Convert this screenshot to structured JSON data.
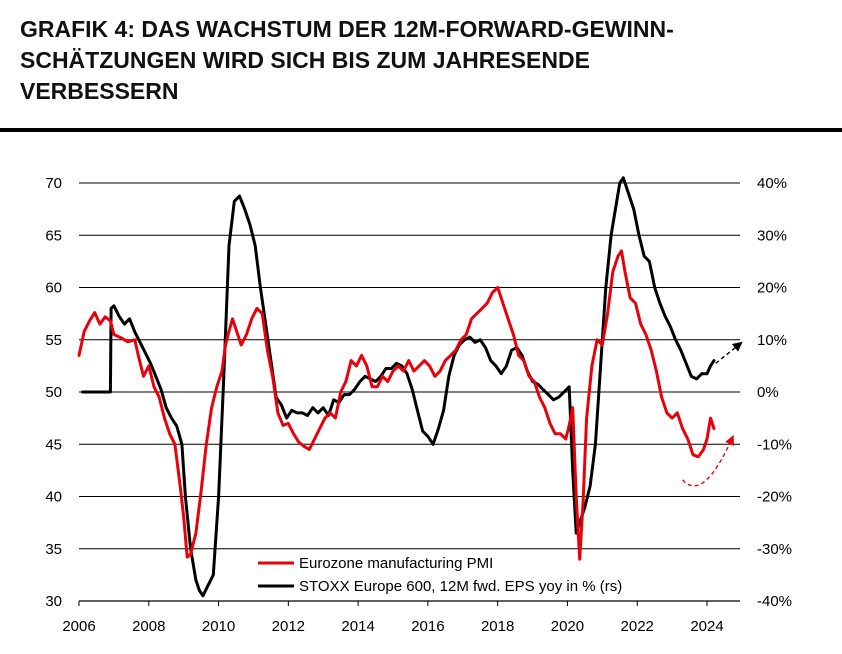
{
  "title_lines": [
    "GRAFIK 4: DAS WACHSTUM DER 12M-FORWARD-GEWINN-",
    "SCHÄTZUNGEN WIRD SICH BIS ZUM JAHRESENDE",
    "VERBESSERN"
  ],
  "chart_data": {
    "type": "line",
    "x_range": [
      2006,
      2025.3
    ],
    "x_ticks": [
      2006,
      2008,
      2010,
      2012,
      2014,
      2016,
      2018,
      2020,
      2022,
      2024
    ],
    "x_tick_labels": [
      "2006",
      "2008",
      "2010",
      "2012",
      "2014",
      "2016",
      "2018",
      "2020",
      "2022",
      "2024"
    ],
    "y_left": {
      "range": [
        30,
        70
      ],
      "ticks": [
        30,
        35,
        40,
        45,
        50,
        55,
        60,
        65,
        70
      ],
      "tick_labels": [
        "30",
        "35",
        "40",
        "45",
        "50",
        "55",
        "60",
        "65",
        "70"
      ]
    },
    "y_right": {
      "range": [
        -40,
        40
      ],
      "ticks": [
        -40,
        -30,
        -20,
        -10,
        0,
        10,
        20,
        30,
        40
      ],
      "tick_labels": [
        "-40%",
        "-30%",
        "-20%",
        "-10%",
        "0%",
        "10%",
        "20%",
        "30%",
        "40%"
      ]
    },
    "grid": "horizontal",
    "legend_position": "bottom-center",
    "series": [
      {
        "name": "Eurozone manufacturing PMI",
        "axis": "left",
        "color": "#e8000b",
        "x": [
          2006.0,
          2006.15,
          2006.3,
          2006.45,
          2006.6,
          2006.75,
          2006.9,
          2007.0,
          2007.2,
          2007.4,
          2007.6,
          2007.7,
          2007.85,
          2008.0,
          2008.15,
          2008.3,
          2008.45,
          2008.6,
          2008.75,
          2008.9,
          2009.0,
          2009.1,
          2009.2,
          2009.35,
          2009.5,
          2009.65,
          2009.8,
          2009.95,
          2010.1,
          2010.2,
          2010.3,
          2010.4,
          2010.5,
          2010.65,
          2010.8,
          2010.95,
          2011.1,
          2011.25,
          2011.4,
          2011.55,
          2011.7,
          2011.85,
          2012.0,
          2012.15,
          2012.3,
          2012.45,
          2012.6,
          2012.75,
          2012.9,
          2013.05,
          2013.2,
          2013.35,
          2013.5,
          2013.65,
          2013.8,
          2013.95,
          2014.1,
          2014.25,
          2014.4,
          2014.55,
          2014.7,
          2014.85,
          2015.0,
          2015.15,
          2015.3,
          2015.45,
          2015.6,
          2015.75,
          2015.9,
          2016.05,
          2016.2,
          2016.35,
          2016.5,
          2016.65,
          2016.8,
          2016.95,
          2017.1,
          2017.25,
          2017.4,
          2017.55,
          2017.7,
          2017.85,
          2018.0,
          2018.15,
          2018.3,
          2018.45,
          2018.6,
          2018.75,
          2018.9,
          2019.05,
          2019.2,
          2019.35,
          2019.5,
          2019.65,
          2019.8,
          2019.95,
          2020.05,
          2020.15,
          2020.25,
          2020.35,
          2020.45,
          2020.55,
          2020.7,
          2020.85,
          2021.0,
          2021.15,
          2021.3,
          2021.45,
          2021.55,
          2021.65,
          2021.8,
          2021.95,
          2022.1,
          2022.25,
          2022.4,
          2022.55,
          2022.7,
          2022.85,
          2023.0,
          2023.15,
          2023.3,
          2023.45,
          2023.6,
          2023.75,
          2023.9,
          2024.0,
          2024.1,
          2024.2
        ],
        "values": [
          53.5,
          55.8,
          56.8,
          57.6,
          56.5,
          57.2,
          56.8,
          55.5,
          55.2,
          54.8,
          55.0,
          53.5,
          51.5,
          52.5,
          50.5,
          49.5,
          47.5,
          46.0,
          45.0,
          41.0,
          38.0,
          34.2,
          34.5,
          36.5,
          40.5,
          45.0,
          48.5,
          50.5,
          52.0,
          54.5,
          55.8,
          57.0,
          56.0,
          54.5,
          55.5,
          57.0,
          58.0,
          57.5,
          54.0,
          51.5,
          48.0,
          46.8,
          47.0,
          46.0,
          45.2,
          44.8,
          44.5,
          45.5,
          46.5,
          47.5,
          48.0,
          47.5,
          50.0,
          51.0,
          53.0,
          52.5,
          53.5,
          52.5,
          50.5,
          50.5,
          51.5,
          51.0,
          52.0,
          52.5,
          52.0,
          53.0,
          52.0,
          52.5,
          53.0,
          52.5,
          51.5,
          52.0,
          53.0,
          53.5,
          54.0,
          55.0,
          55.5,
          57.0,
          57.5,
          58.0,
          58.5,
          59.5,
          60.0,
          58.5,
          57.0,
          55.5,
          53.5,
          53.0,
          51.5,
          51.0,
          49.5,
          48.5,
          47.0,
          46.0,
          46.0,
          45.5,
          46.8,
          48.5,
          40.0,
          34.0,
          39.5,
          47.5,
          52.5,
          55.0,
          54.5,
          57.5,
          61.5,
          63.0,
          63.5,
          61.5,
          59.0,
          58.5,
          56.5,
          55.5,
          54.0,
          52.0,
          49.5,
          48.0,
          47.5,
          48.0,
          46.5,
          45.5,
          44.0,
          43.8,
          44.5,
          45.5,
          47.5,
          46.5
        ]
      },
      {
        "name": "STOXX Europe 600, 12M fwd. EPS yoy in % (rs)",
        "axis": "right",
        "color": "#000000",
        "x": [
          2006.1,
          2006.5,
          2006.9,
          2006.92,
          2007.0,
          2007.15,
          2007.3,
          2007.45,
          2007.6,
          2007.75,
          2007.9,
          2008.05,
          2008.2,
          2008.35,
          2008.5,
          2008.65,
          2008.8,
          2008.95,
          2009.05,
          2009.2,
          2009.35,
          2009.45,
          2009.55,
          2009.7,
          2009.85,
          2010.0,
          2010.15,
          2010.3,
          2010.45,
          2010.6,
          2010.75,
          2010.9,
          2011.05,
          2011.2,
          2011.35,
          2011.5,
          2011.65,
          2011.8,
          2011.95,
          2012.1,
          2012.25,
          2012.4,
          2012.55,
          2012.7,
          2012.85,
          2013.0,
          2013.15,
          2013.3,
          2013.45,
          2013.6,
          2013.75,
          2013.9,
          2014.05,
          2014.2,
          2014.35,
          2014.5,
          2014.65,
          2014.8,
          2014.95,
          2015.1,
          2015.25,
          2015.4,
          2015.55,
          2015.7,
          2015.85,
          2016.0,
          2016.15,
          2016.3,
          2016.45,
          2016.6,
          2016.75,
          2016.9,
          2017.05,
          2017.2,
          2017.35,
          2017.5,
          2017.65,
          2017.8,
          2017.95,
          2018.1,
          2018.25,
          2018.4,
          2018.55,
          2018.7,
          2018.85,
          2019.0,
          2019.15,
          2019.3,
          2019.45,
          2019.6,
          2019.75,
          2019.9,
          2020.05,
          2020.15,
          2020.25,
          2020.35,
          2020.5,
          2020.65,
          2020.8,
          2020.95,
          2021.1,
          2021.25,
          2021.4,
          2021.5,
          2021.6,
          2021.75,
          2021.9,
          2022.05,
          2022.2,
          2022.35,
          2022.5,
          2022.65,
          2022.8,
          2022.95,
          2023.1,
          2023.25,
          2023.4,
          2023.55,
          2023.7,
          2023.85,
          2024.0,
          2024.1,
          2024.2
        ],
        "values": [
          0.0,
          0.0,
          0.0,
          16.0,
          16.5,
          14.5,
          13.0,
          14.0,
          11.5,
          9.5,
          7.5,
          5.5,
          3.0,
          0.5,
          -3.0,
          -5.0,
          -6.5,
          -10.0,
          -20.0,
          -30.0,
          -36.0,
          -38.0,
          -39.0,
          -37.0,
          -35.0,
          -20.0,
          3.0,
          28.0,
          36.5,
          37.5,
          35.0,
          32.0,
          28.0,
          20.0,
          13.0,
          6.0,
          -1.0,
          -2.5,
          -5.0,
          -3.5,
          -4.0,
          -4.0,
          -4.5,
          -3.0,
          -4.0,
          -3.0,
          -4.5,
          -1.5,
          -2.0,
          -0.5,
          -0.5,
          0.5,
          2.0,
          3.0,
          2.5,
          2.0,
          3.0,
          4.5,
          4.5,
          5.5,
          5.0,
          3.5,
          0.5,
          -3.5,
          -7.5,
          -8.5,
          -10.0,
          -7.0,
          -3.5,
          3.0,
          7.0,
          9.0,
          10.0,
          10.5,
          9.5,
          10.0,
          8.5,
          6.0,
          5.0,
          3.5,
          5.0,
          8.0,
          8.5,
          7.0,
          4.0,
          2.0,
          1.5,
          0.5,
          -0.5,
          -1.5,
          -1.0,
          0.0,
          1.0,
          -15.0,
          -27.0,
          -25.0,
          -22.0,
          -18.0,
          -10.0,
          5.0,
          20.0,
          30.0,
          36.0,
          40.0,
          41.0,
          38.0,
          35.0,
          30.0,
          26.0,
          25.0,
          20.0,
          17.0,
          14.5,
          12.5,
          10.0,
          8.0,
          5.5,
          3.0,
          2.5,
          3.5,
          3.5,
          5.0,
          6.0
        ]
      }
    ],
    "annotations": [
      {
        "type": "dashed-arrow",
        "color": "#000000",
        "axis": "right",
        "from": [
          2024.25,
          5.5
        ],
        "to": [
          2025.0,
          9.5
        ]
      },
      {
        "type": "dashed-curved-arrow",
        "color": "#e8000b",
        "axis": "left",
        "from": [
          2023.3,
          41.6
        ],
        "via": [
          2023.9,
          40.5
        ],
        "to": [
          2024.75,
          45.8
        ]
      }
    ]
  }
}
